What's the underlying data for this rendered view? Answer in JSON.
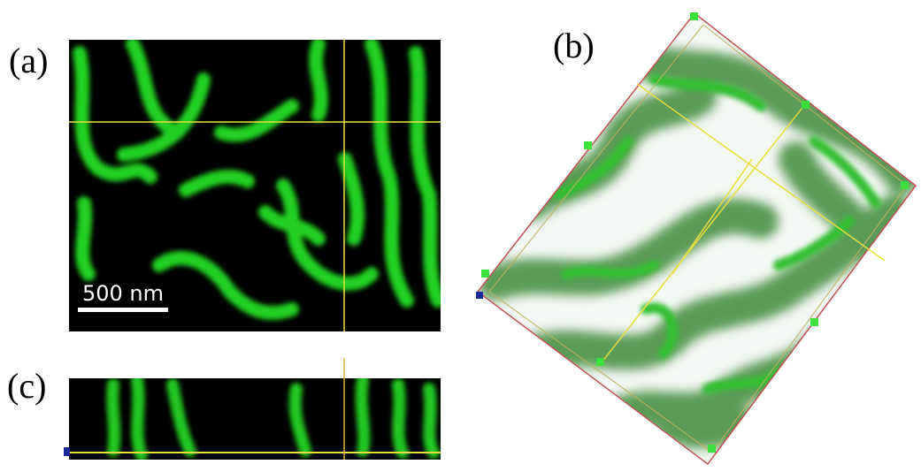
{
  "panels": [
    {
      "label": "(a)"
    },
    {
      "label": "(b)"
    },
    {
      "label": "(c)"
    }
  ],
  "scale_bar": {
    "label": "500 nm"
  }
}
